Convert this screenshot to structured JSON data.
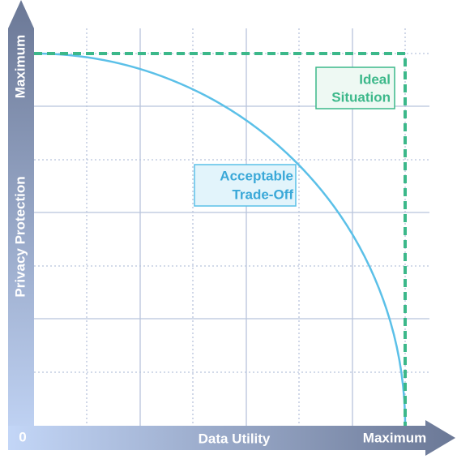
{
  "y_axis": {
    "label": "Privacy Protection",
    "max_label": "Maximum"
  },
  "x_axis": {
    "label": "Data Utility",
    "max_label": "Maximum",
    "origin_label": "0"
  },
  "annotations": {
    "ideal": [
      "Ideal",
      "Situation"
    ],
    "tradeoff": [
      "Acceptable",
      "Trade-Off"
    ]
  }
}
